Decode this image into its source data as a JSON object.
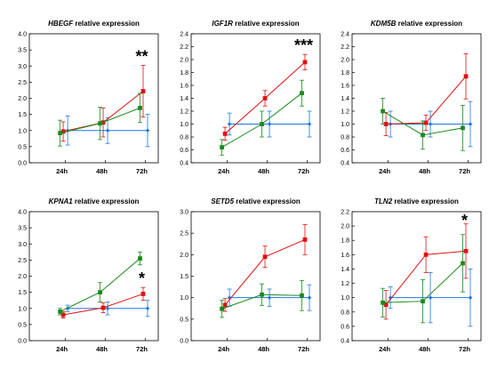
{
  "chart_data": [
    {
      "type": "line",
      "gene": "HBEGF",
      "title_suffix": " relative expression",
      "categories": [
        "24h",
        "48h",
        "72h"
      ],
      "ylim": [
        0,
        4
      ],
      "yticks": [
        "0.0",
        "0.5",
        "1.0",
        "1.5",
        "2.0",
        "2.5",
        "3.0",
        "3.5",
        "4.0"
      ],
      "significance": "**",
      "significance_at": "72h",
      "series": [
        {
          "color": "#1f77e0",
          "values": [
            1.0,
            1.0,
            1.0
          ],
          "err": [
            0.45,
            0.4,
            0.5
          ]
        },
        {
          "color": "#e01010",
          "values": [
            0.97,
            1.25,
            2.22
          ],
          "err": [
            0.3,
            0.45,
            0.8
          ]
        },
        {
          "color": "#1a8a1a",
          "values": [
            0.92,
            1.22,
            1.7
          ],
          "err": [
            0.4,
            0.5,
            0.45
          ]
        }
      ]
    },
    {
      "type": "line",
      "gene": "IGF1R",
      "title_suffix": " relative expression",
      "categories": [
        "24h",
        "48h",
        "72h"
      ],
      "ylim": [
        0.4,
        2.4
      ],
      "yticks": [
        "0.4",
        "0.6",
        "0.8",
        "1.0",
        "1.2",
        "1.4",
        "1.6",
        "1.8",
        "2.0",
        "2.2",
        "2.4"
      ],
      "significance": "***",
      "significance_at": "72h",
      "series": [
        {
          "color": "#1f77e0",
          "values": [
            1.0,
            1.0,
            1.0
          ],
          "err": [
            0.17,
            0.2,
            0.2
          ]
        },
        {
          "color": "#e01010",
          "values": [
            0.85,
            1.4,
            1.96
          ],
          "err": [
            0.1,
            0.12,
            0.12
          ]
        },
        {
          "color": "#1a8a1a",
          "values": [
            0.64,
            1.0,
            1.48
          ],
          "err": [
            0.12,
            0.2,
            0.2
          ]
        }
      ]
    },
    {
      "type": "line",
      "gene": "KDM5B",
      "title_suffix": " relative expression",
      "categories": [
        "24h",
        "48h",
        "72h"
      ],
      "ylim": [
        0.4,
        2.4
      ],
      "yticks": [
        "0.4",
        "0.6",
        "0.8",
        "1.0",
        "1.2",
        "1.4",
        "1.6",
        "1.8",
        "2.0",
        "2.2",
        "2.4"
      ],
      "significance": "",
      "significance_at": "",
      "series": [
        {
          "color": "#1f77e0",
          "values": [
            1.0,
            1.0,
            1.0
          ],
          "err": [
            0.2,
            0.2,
            0.35
          ]
        },
        {
          "color": "#e01010",
          "values": [
            1.0,
            1.02,
            1.74
          ],
          "err": [
            0.18,
            0.12,
            0.35
          ]
        },
        {
          "color": "#1a8a1a",
          "values": [
            1.2,
            0.83,
            0.94
          ],
          "err": [
            0.2,
            0.22,
            0.35
          ]
        }
      ]
    },
    {
      "type": "line",
      "gene": "KPNA1",
      "title_suffix": " relative expression",
      "categories": [
        "24h",
        "48h",
        "72h"
      ],
      "ylim": [
        0,
        4
      ],
      "yticks": [
        "0.0",
        "0.5",
        "1.0",
        "1.5",
        "2.0",
        "2.5",
        "3.0",
        "3.5",
        "4.0"
      ],
      "significance": "*",
      "significance_at": "72h",
      "series": [
        {
          "color": "#1f77e0",
          "values": [
            1.0,
            1.0,
            1.0
          ],
          "err": [
            0.1,
            0.2,
            0.25
          ]
        },
        {
          "color": "#e01010",
          "values": [
            0.8,
            1.02,
            1.45
          ],
          "err": [
            0.1,
            0.15,
            0.2
          ]
        },
        {
          "color": "#1a8a1a",
          "values": [
            0.9,
            1.5,
            2.55
          ],
          "err": [
            0.1,
            0.3,
            0.2
          ]
        }
      ]
    },
    {
      "type": "line",
      "gene": "SETD5",
      "title_suffix": " relative expression",
      "categories": [
        "24h",
        "48h",
        "72h"
      ],
      "ylim": [
        0,
        3
      ],
      "yticks": [
        "0.0",
        "0.5",
        "1.0",
        "1.5",
        "2.0",
        "2.5",
        "3.0"
      ],
      "significance": "",
      "significance_at": "",
      "series": [
        {
          "color": "#1f77e0",
          "values": [
            1.0,
            1.0,
            1.0
          ],
          "err": [
            0.2,
            0.2,
            0.3
          ]
        },
        {
          "color": "#e01010",
          "values": [
            0.83,
            1.95,
            2.35
          ],
          "err": [
            0.15,
            0.25,
            0.35
          ]
        },
        {
          "color": "#1a8a1a",
          "values": [
            0.74,
            1.07,
            1.05
          ],
          "err": [
            0.2,
            0.25,
            0.35
          ]
        }
      ]
    },
    {
      "type": "line",
      "gene": "TLN2",
      "title_suffix": " relative expression",
      "categories": [
        "24h",
        "48h",
        "72h"
      ],
      "ylim": [
        0.4,
        2.2
      ],
      "yticks": [
        "0.4",
        "0.6",
        "0.8",
        "1.0",
        "1.2",
        "1.4",
        "1.6",
        "1.8",
        "2.0",
        "2.2"
      ],
      "significance": "*",
      "significance_at": "72h",
      "series": [
        {
          "color": "#1f77e0",
          "values": [
            1.0,
            1.0,
            1.0
          ],
          "err": [
            0.15,
            0.35,
            0.4
          ]
        },
        {
          "color": "#e01010",
          "values": [
            0.9,
            1.6,
            1.65
          ],
          "err": [
            0.2,
            0.25,
            0.38
          ]
        },
        {
          "color": "#1a8a1a",
          "values": [
            0.93,
            0.95,
            1.48
          ],
          "err": [
            0.2,
            0.3,
            0.4
          ]
        }
      ]
    }
  ]
}
